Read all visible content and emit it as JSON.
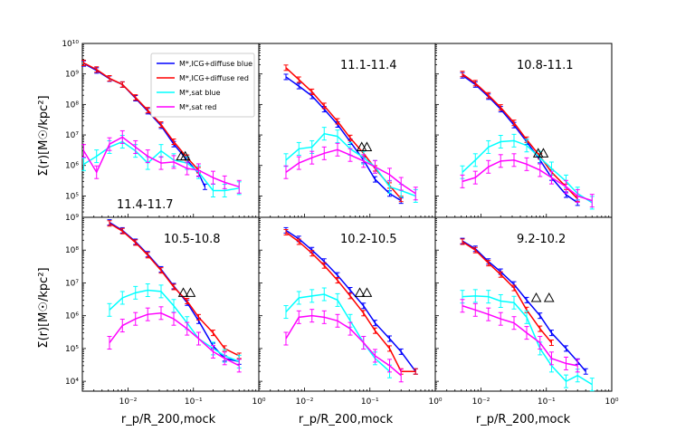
{
  "figure": {
    "ylabel": "Σ(r)[M☉/kpc²]",
    "xlabel": "r_p/R_200,mock",
    "x_tick_labels": [
      "10⁻²",
      "10⁻¹",
      "10⁰"
    ],
    "x_log_range": [
      0.002,
      1.0
    ],
    "top_row_y_ticks": [
      "10⁵",
      "10⁶",
      "10⁷",
      "10⁸",
      "10⁹",
      "10¹⁰"
    ],
    "top_row_y_log_range": [
      4.3,
      10.0
    ],
    "bottom_row_y_ticks": [
      "10⁴",
      "10⁵",
      "10⁶",
      "10⁷",
      "10⁸",
      "10⁹"
    ],
    "bottom_row_y_log_range": [
      3.7,
      9.0
    ]
  },
  "legend": {
    "location": "upper-right of first panel",
    "entries": [
      {
        "label": "M*,ICG+diffuse blue",
        "color": "#0000ff"
      },
      {
        "label": "M*,ICG+diffuse red",
        "color": "#ff0000"
      },
      {
        "label": "M*,sat blue",
        "color": "#00ffff"
      },
      {
        "label": "M*,sat red",
        "color": "#ff00ff"
      }
    ]
  },
  "colors": {
    "icg_blue": "#0000ff",
    "icg_red": "#ff0000",
    "sat_blue": "#00ffff",
    "sat_red": "#ff00ff"
  },
  "chart_data": [
    {
      "type": "line",
      "title": "11.4-11.7",
      "title_position": "bottom-left",
      "x_scale": "log",
      "y_scale": "log",
      "triangle_x": [
        0.065,
        0.075
      ],
      "triangle_y": 2000000,
      "series": [
        {
          "name": "M*,ICG+diffuse blue",
          "x": [
            0.0021,
            0.0033,
            0.0052,
            0.0082,
            0.013,
            0.02,
            0.032,
            0.05,
            0.08,
            0.12,
            0.15
          ],
          "y": [
            2200000000,
            1300000000,
            700000000,
            450000000,
            160000000,
            60000000,
            20000000,
            5000000,
            1500000,
            550000,
            200000
          ]
        },
        {
          "name": "M*,ICG+diffuse red",
          "x": [
            0.0021,
            0.0033,
            0.0052,
            0.0082,
            0.013,
            0.02,
            0.032,
            0.05,
            0.08,
            0.12
          ],
          "y": [
            2300000000,
            1400000000,
            720000000,
            450000000,
            170000000,
            65000000,
            22000000,
            6000000,
            1800000,
            700000
          ]
        },
        {
          "name": "M*,sat blue",
          "x": [
            0.0021,
            0.0033,
            0.0052,
            0.0082,
            0.013,
            0.02,
            0.032,
            0.05,
            0.08,
            0.12,
            0.2,
            0.3,
            0.5
          ],
          "y": [
            1100000,
            2000000,
            4000000,
            6000000,
            3000000,
            1200000,
            3000000,
            1500000,
            1200000,
            600000,
            150000,
            150000,
            180000
          ]
        },
        {
          "name": "M*,sat red",
          "x": [
            0.0021,
            0.0033,
            0.0052,
            0.0082,
            0.013,
            0.02,
            0.032,
            0.05,
            0.08,
            0.12,
            0.2,
            0.3,
            0.5
          ],
          "y": [
            3000000,
            600000,
            5000000,
            8500000,
            4000000,
            2000000,
            1200000,
            1300000,
            800000,
            700000,
            400000,
            280000,
            200000
          ]
        }
      ]
    },
    {
      "type": "line",
      "title": "11.1-11.4",
      "title_position": "top",
      "x_scale": "log",
      "y_scale": "log",
      "triangle_x": [
        0.075,
        0.09
      ],
      "triangle_y": 4000000,
      "series": [
        {
          "name": "M*,ICG+diffuse blue",
          "x": [
            0.0052,
            0.0082,
            0.013,
            0.02,
            0.032,
            0.05,
            0.08,
            0.12,
            0.2,
            0.3
          ],
          "y": [
            800000000,
            400000000,
            190000000,
            70000000,
            22000000,
            6000000,
            1500000,
            350000,
            120000,
            70000
          ]
        },
        {
          "name": "M*,ICG+diffuse red",
          "x": [
            0.0052,
            0.0082,
            0.013,
            0.02,
            0.032,
            0.05,
            0.08,
            0.12,
            0.2,
            0.3
          ],
          "y": [
            1600000000,
            650000000,
            260000000,
            90000000,
            28000000,
            8000000,
            2500000,
            800000,
            220000,
            80000
          ]
        },
        {
          "name": "M*,sat blue",
          "x": [
            0.0052,
            0.0082,
            0.013,
            0.02,
            0.032,
            0.05,
            0.08,
            0.12,
            0.2,
            0.3,
            0.5
          ],
          "y": [
            1500000,
            3500000,
            4000000,
            11000000,
            9000000,
            3500000,
            1800000,
            900000,
            200000,
            150000,
            100000
          ]
        },
        {
          "name": "M*,sat red",
          "x": [
            0.0052,
            0.0082,
            0.013,
            0.02,
            0.032,
            0.05,
            0.08,
            0.12,
            0.2,
            0.3,
            0.5
          ],
          "y": [
            600000,
            1200000,
            1800000,
            2500000,
            3300000,
            2200000,
            1400000,
            900000,
            500000,
            250000,
            120000
          ]
        }
      ]
    },
    {
      "type": "line",
      "title": "10.8-11.1",
      "title_position": "top",
      "x_scale": "log",
      "y_scale": "log",
      "triangle_x": [
        0.075,
        0.09
      ],
      "triangle_y": 2500000,
      "series": [
        {
          "name": "M*,ICG+diffuse blue",
          "x": [
            0.0052,
            0.0082,
            0.013,
            0.02,
            0.032,
            0.05,
            0.08,
            0.12,
            0.2,
            0.3
          ],
          "y": [
            900000000,
            450000000,
            180000000,
            70000000,
            21000000,
            6000000,
            1500000,
            400000,
            110000,
            60000
          ]
        },
        {
          "name": "M*,ICG+diffuse red",
          "x": [
            0.0052,
            0.0082,
            0.013,
            0.02,
            0.032,
            0.05,
            0.08,
            0.12,
            0.2,
            0.3
          ],
          "y": [
            1000000000,
            500000000,
            200000000,
            80000000,
            25000000,
            7000000,
            2000000,
            600000,
            200000,
            80000
          ]
        },
        {
          "name": "M*,sat blue",
          "x": [
            0.0052,
            0.0082,
            0.013,
            0.02,
            0.032,
            0.05,
            0.08,
            0.12,
            0.2,
            0.3,
            0.5
          ],
          "y": [
            600000,
            1500000,
            4000000,
            6000000,
            6500000,
            4500000,
            1800000,
            800000,
            300000,
            120000,
            60000
          ]
        },
        {
          "name": "M*,sat red",
          "x": [
            0.0052,
            0.0082,
            0.013,
            0.02,
            0.032,
            0.05,
            0.08,
            0.12,
            0.2,
            0.3,
            0.5
          ],
          "y": [
            300000,
            400000,
            900000,
            1400000,
            1500000,
            1100000,
            700000,
            400000,
            200000,
            100000,
            70000
          ]
        }
      ]
    },
    {
      "type": "line",
      "title": "10.5-10.8",
      "title_position": "top",
      "x_scale": "log",
      "y_scale": "log",
      "triangle_x": [
        0.07,
        0.09
      ],
      "triangle_y": 5000000,
      "series": [
        {
          "name": "M*,ICG+diffuse blue",
          "x": [
            0.0052,
            0.0082,
            0.013,
            0.02,
            0.032,
            0.05,
            0.08,
            0.12,
            0.2,
            0.3,
            0.5
          ],
          "y": [
            700000000,
            400000000,
            180000000,
            75000000,
            26000000,
            8000000,
            2500000,
            700000,
            120000,
            50000,
            40000
          ]
        },
        {
          "name": "M*,ICG+diffuse red",
          "x": [
            0.0052,
            0.0082,
            0.013,
            0.02,
            0.032,
            0.05,
            0.08,
            0.12,
            0.2,
            0.3,
            0.5
          ],
          "y": [
            650000000,
            380000000,
            170000000,
            70000000,
            24000000,
            7500000,
            2800000,
            900000,
            300000,
            100000,
            60000
          ]
        },
        {
          "name": "M*,sat blue",
          "x": [
            0.0052,
            0.0082,
            0.013,
            0.02,
            0.032,
            0.05,
            0.08,
            0.12,
            0.2,
            0.3,
            0.5
          ],
          "y": [
            1500000,
            3500000,
            5000000,
            6000000,
            5500000,
            2000000,
            600000,
            200000,
            100000,
            60000,
            40000
          ]
        },
        {
          "name": "M*,sat red",
          "x": [
            0.0052,
            0.0082,
            0.013,
            0.02,
            0.032,
            0.05,
            0.08,
            0.12,
            0.2,
            0.3,
            0.5
          ],
          "y": [
            150000,
            500000,
            800000,
            1100000,
            1200000,
            800000,
            400000,
            200000,
            80000,
            50000,
            30000
          ]
        }
      ]
    },
    {
      "type": "line",
      "title": "10.2-10.5",
      "title_position": "top",
      "x_scale": "log",
      "y_scale": "log",
      "triangle_x": [
        0.07,
        0.09
      ],
      "triangle_y": 5000000,
      "series": [
        {
          "name": "M*,ICG+diffuse blue",
          "x": [
            0.0052,
            0.0082,
            0.013,
            0.02,
            0.032,
            0.05,
            0.08,
            0.12,
            0.2,
            0.3,
            0.5
          ],
          "y": [
            400000000,
            220000000,
            100000000,
            45000000,
            17000000,
            6000000,
            2000000,
            600000,
            200000,
            80000,
            20000
          ]
        },
        {
          "name": "M*,ICG+diffuse red",
          "x": [
            0.0052,
            0.0082,
            0.013,
            0.02,
            0.032,
            0.05,
            0.08,
            0.12,
            0.2,
            0.3,
            0.5
          ],
          "y": [
            350000000,
            180000000,
            80000000,
            34000000,
            12000000,
            4000000,
            1200000,
            350000,
            100000,
            20000,
            20000
          ]
        },
        {
          "name": "M*,sat blue",
          "x": [
            0.0052,
            0.0082,
            0.013,
            0.02,
            0.032,
            0.05,
            0.08,
            0.12,
            0.2
          ],
          "y": [
            1300000,
            3500000,
            4000000,
            4500000,
            3000000,
            700000,
            150000,
            50000,
            20000
          ]
        },
        {
          "name": "M*,sat red",
          "x": [
            0.0052,
            0.0082,
            0.013,
            0.02,
            0.032,
            0.05,
            0.08,
            0.12,
            0.2,
            0.3
          ],
          "y": [
            200000,
            900000,
            1000000,
            900000,
            700000,
            400000,
            150000,
            60000,
            30000,
            15000
          ]
        }
      ]
    },
    {
      "type": "line",
      "title": "9.2-10.2",
      "title_position": "top",
      "x_scale": "log",
      "y_scale": "log",
      "triangle_x": [
        0.07,
        0.11
      ],
      "triangle_y": 3500000,
      "series": [
        {
          "name": "M*,ICG+diffuse blue",
          "x": [
            0.0052,
            0.0082,
            0.013,
            0.02,
            0.032,
            0.05,
            0.08,
            0.12,
            0.2,
            0.3,
            0.4
          ],
          "y": [
            190000000,
            110000000,
            45000000,
            22000000,
            9000000,
            3000000,
            1000000,
            300000,
            100000,
            40000,
            20000
          ]
        },
        {
          "name": "M*,ICG+diffuse red",
          "x": [
            0.0052,
            0.0082,
            0.013,
            0.02,
            0.032,
            0.05,
            0.08,
            0.12
          ],
          "y": [
            180000000,
            100000000,
            40000000,
            18000000,
            7000000,
            1500000,
            400000,
            150000
          ]
        },
        {
          "name": "M*,sat blue",
          "x": [
            0.0052,
            0.0082,
            0.013,
            0.02,
            0.032,
            0.05,
            0.08,
            0.12,
            0.2,
            0.3,
            0.5
          ],
          "y": [
            3800000,
            4000000,
            3800000,
            2800000,
            2500000,
            900000,
            100000,
            30000,
            10000,
            15000,
            8000
          ]
        },
        {
          "name": "M*,sat red",
          "x": [
            0.0052,
            0.0082,
            0.013,
            0.02,
            0.032,
            0.05,
            0.08,
            0.12,
            0.2,
            0.3
          ],
          "y": [
            2000000,
            1500000,
            1100000,
            800000,
            600000,
            300000,
            150000,
            50000,
            35000,
            30000
          ]
        }
      ]
    }
  ]
}
